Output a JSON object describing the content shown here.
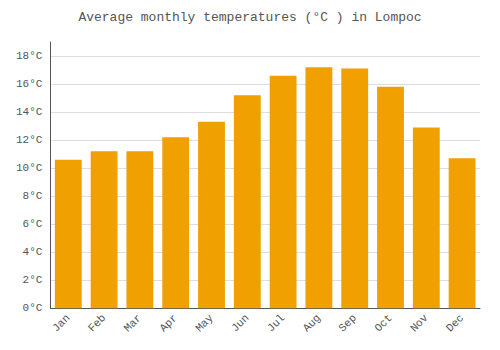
{
  "chart_data": {
    "type": "bar",
    "title": "Average monthly temperatures (°C ) in Lompoc",
    "categories": [
      "Jan",
      "Feb",
      "Mar",
      "Apr",
      "May",
      "Jun",
      "Jul",
      "Aug",
      "Sep",
      "Oct",
      "Nov",
      "Dec"
    ],
    "values": [
      10.6,
      11.2,
      11.2,
      12.2,
      13.3,
      15.2,
      16.6,
      17.2,
      17.1,
      15.8,
      12.9,
      10.7
    ],
    "color": "#F0A000",
    "ylim": [
      0,
      19
    ],
    "yticks": [
      {
        "value": 0,
        "label": "0°C"
      },
      {
        "value": 2,
        "label": "2°C"
      },
      {
        "value": 4,
        "label": "4°C"
      },
      {
        "value": 6,
        "label": "6°C"
      },
      {
        "value": 8,
        "label": "8°C"
      },
      {
        "value": 10,
        "label": "10°C"
      },
      {
        "value": 12,
        "label": "12°C"
      },
      {
        "value": 14,
        "label": "14°C"
      },
      {
        "value": 16,
        "label": "16°C"
      },
      {
        "value": 18,
        "label": "18°C"
      }
    ],
    "grid": true
  }
}
